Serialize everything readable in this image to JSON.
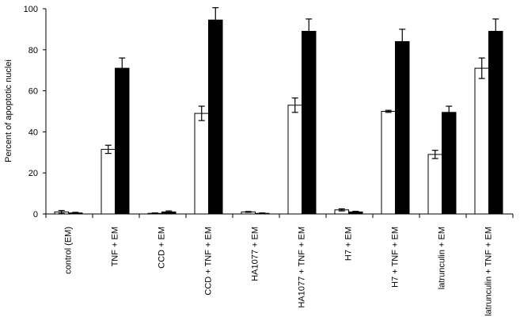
{
  "chart_data": {
    "type": "bar",
    "y_label": "Percent of apoptotic nuclei",
    "categories": [
      "control (EM)",
      "TNF + EM",
      "CCD + EM",
      "CCD + TNF + EM",
      "HA1077 + EM",
      "HA1077 + TNF + EM",
      "H7 + EM",
      "H7 + TNF + EM",
      "latrunculin + EM",
      "latrunculin + TNF + EM"
    ],
    "series": [
      {
        "color": "#ffffff",
        "values": [
          1,
          31.5,
          0.3,
          49,
          1,
          53,
          2,
          50,
          29,
          71
        ],
        "errors": [
          0.7,
          2,
          0.2,
          3.5,
          0.2,
          3.5,
          0.5,
          0.5,
          2,
          5
        ],
        "error_direction": "both"
      },
      {
        "color": "#000000",
        "values": [
          0.5,
          71,
          1,
          94.5,
          0.3,
          89,
          1,
          84,
          49.5,
          89
        ],
        "errors": [
          0.3,
          5,
          0.5,
          6,
          0.2,
          6,
          0.3,
          6,
          3,
          6
        ],
        "error_direction": "up"
      }
    ],
    "ylim": [
      0,
      100
    ],
    "yticks": [
      0,
      20,
      40,
      60,
      80,
      100
    ],
    "grid": false
  }
}
